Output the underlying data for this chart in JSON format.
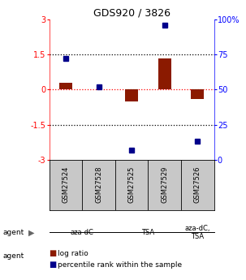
{
  "title": "GDS920 / 3826",
  "samples": [
    "GSM27524",
    "GSM27528",
    "GSM27525",
    "GSM27529",
    "GSM27526"
  ],
  "log_ratios": [
    0.28,
    0.0,
    -0.5,
    1.35,
    -0.42
  ],
  "percentile_ranks": [
    72,
    52,
    7,
    96,
    13
  ],
  "agents": [
    {
      "label": "aza-dC",
      "color": "#90EE90",
      "span": [
        0,
        2
      ]
    },
    {
      "label": "TSA",
      "color": "#5CD65C",
      "span": [
        2,
        4
      ]
    },
    {
      "label": "aza-dC,\nTSA",
      "color": "#90EE90",
      "span": [
        4,
        5
      ]
    }
  ],
  "ylim": [
    -3,
    3
  ],
  "yticks_left": [
    -3,
    -1.5,
    0,
    1.5,
    3
  ],
  "yticks_right_vals": [
    0,
    25,
    50,
    75,
    100
  ],
  "bar_color": "#8B1A00",
  "dot_color": "#00008B",
  "hlines": [
    1.5,
    0,
    -1.5
  ],
  "hline_styles": [
    "dotted",
    "dotted",
    "dotted"
  ],
  "hline_colors": [
    "black",
    "red",
    "black"
  ],
  "background_color": "#ffffff"
}
